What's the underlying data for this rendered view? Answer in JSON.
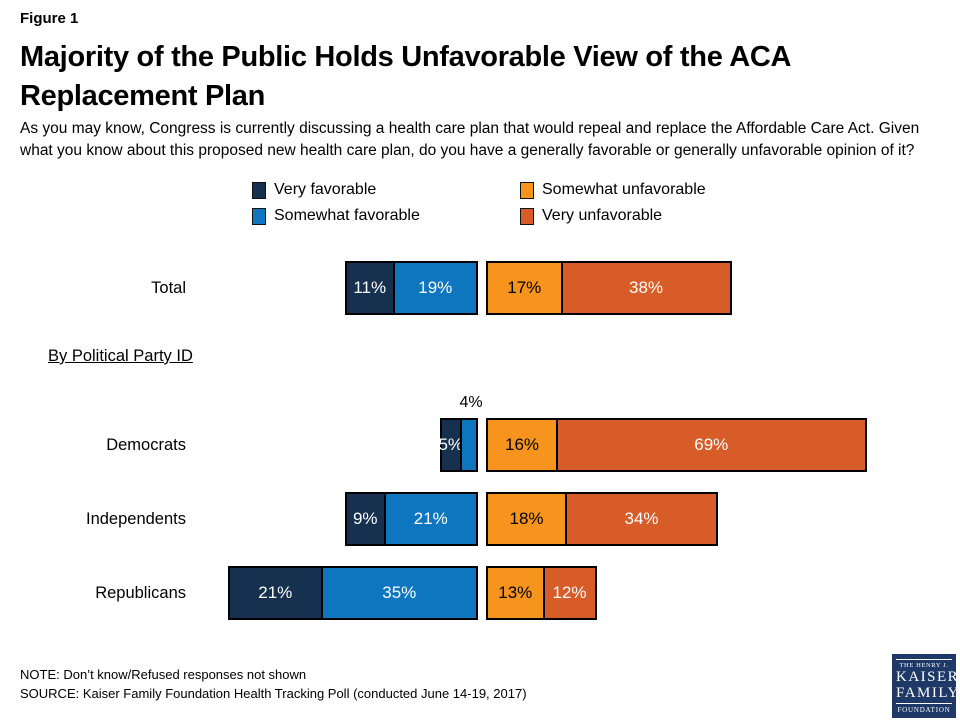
{
  "figure_label": "Figure 1",
  "title_lines": [
    "Majority of the Public Holds Unfavorable View of the ACA",
    "Replacement Plan"
  ],
  "subtitle": "As you may know, Congress is currently discussing a health care plan that would repeal and replace the Affordable Care Act. Given what you know about this proposed new health care plan, do you have a generally favorable or generally unfavorable opinion of it?",
  "section_label": "By Political Party ID",
  "note": "NOTE: Don’t know/Refused responses not shown",
  "source": "SOURCE: Kaiser Family Foundation Health Tracking Poll (conducted June 14-19, 2017)",
  "colors": {
    "very_favorable": "#16304F",
    "somewhat_favorable": "#0D76BF",
    "somewhat_unfavorable": "#F7941D",
    "very_unfavorable": "#D85C27",
    "segment_border": "#000000",
    "logo_background": "#1E3968"
  },
  "chart_data": {
    "type": "bar",
    "orientation": "horizontal-diverging-stacked",
    "title": "Majority of the Public Holds Unfavorable View of the ACA Replacement Plan",
    "categories": [
      "Total",
      "Democrats",
      "Independents",
      "Republicans"
    ],
    "series": [
      {
        "name": "Very favorable",
        "color": "#16304F",
        "label_color": "#ffffff",
        "values": [
          11,
          5,
          9,
          21
        ]
      },
      {
        "name": "Somewhat favorable",
        "color": "#0D76BF",
        "label_color": "#ffffff",
        "values": [
          19,
          4,
          21,
          35
        ]
      },
      {
        "name": "Somewhat unfavorable",
        "color": "#F7941D",
        "label_color": "#000000",
        "values": [
          17,
          16,
          18,
          13
        ]
      },
      {
        "name": "Very unfavorable",
        "color": "#D85C27",
        "label_color": "#ffffff",
        "values": [
          38,
          69,
          34,
          12
        ]
      }
    ],
    "labels_format": "percent",
    "legend_position": "top",
    "axis": "hidden",
    "annotations": [
      {
        "text": "4%",
        "category": "Democrats",
        "series": "Somewhat favorable",
        "position": "above-bar"
      }
    ]
  },
  "logo": {
    "line1": "THE HENRY J.",
    "line2": "KAISER",
    "line3": "FAMILY",
    "line4": "FOUNDATION"
  }
}
